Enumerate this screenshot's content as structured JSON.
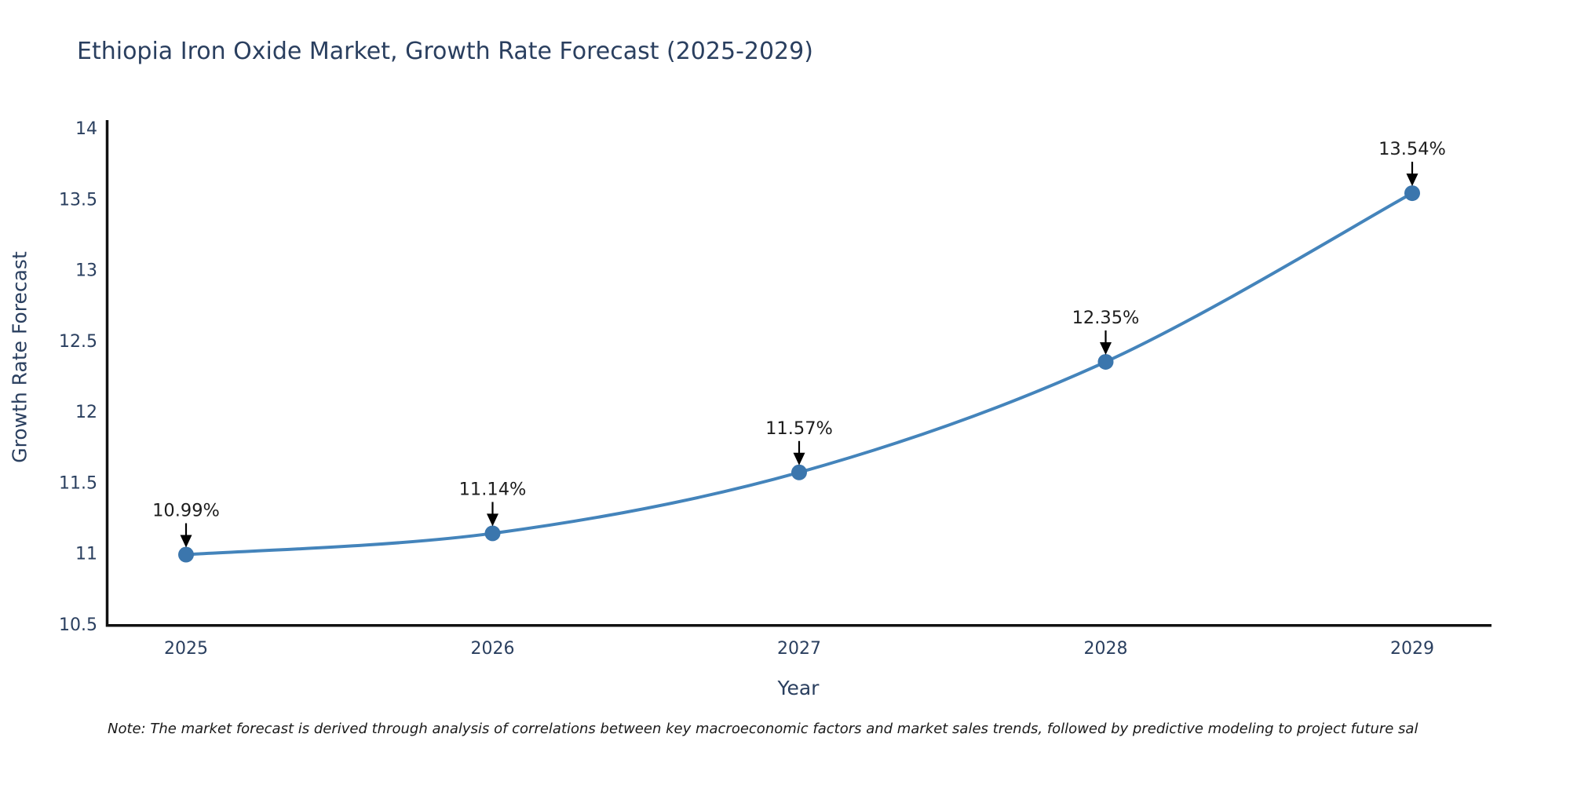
{
  "header": {
    "title": "Ethiopia Iron Oxide Market, Growth Rate Forecast (2025-2029)"
  },
  "footnote": {
    "text": "Note: The market forecast is derived through analysis of correlations between key macroeconomic factors and market sales trends, followed by predictive modeling to project future sal"
  },
  "chart_data": {
    "type": "line",
    "title": "Ethiopia Iron Oxide Market, Growth Rate Forecast (2025-2029)",
    "xlabel": "Year",
    "ylabel": "Growth Rate Forecast",
    "categories": [
      "2025",
      "2026",
      "2027",
      "2028",
      "2029"
    ],
    "series": [
      {
        "name": "Growth Rate Forecast",
        "values": [
          10.99,
          11.14,
          11.57,
          12.35,
          13.54
        ],
        "point_labels": [
          "10.99%",
          "11.14%",
          "11.57%",
          "12.35%",
          "13.54%"
        ]
      }
    ],
    "ylim": [
      10.5,
      14
    ],
    "yticks": [
      10.5,
      11,
      11.5,
      12,
      12.5,
      13,
      13.5,
      14
    ],
    "line_shape": "spline",
    "grid": false,
    "legend": "none",
    "colors": {
      "line": "#4484bb",
      "marker": "#3b76ad",
      "axis": "#111111",
      "tick_text": "#2a3f5f",
      "annotation_text": "#1d1d1d",
      "arrow": "#000000"
    }
  }
}
